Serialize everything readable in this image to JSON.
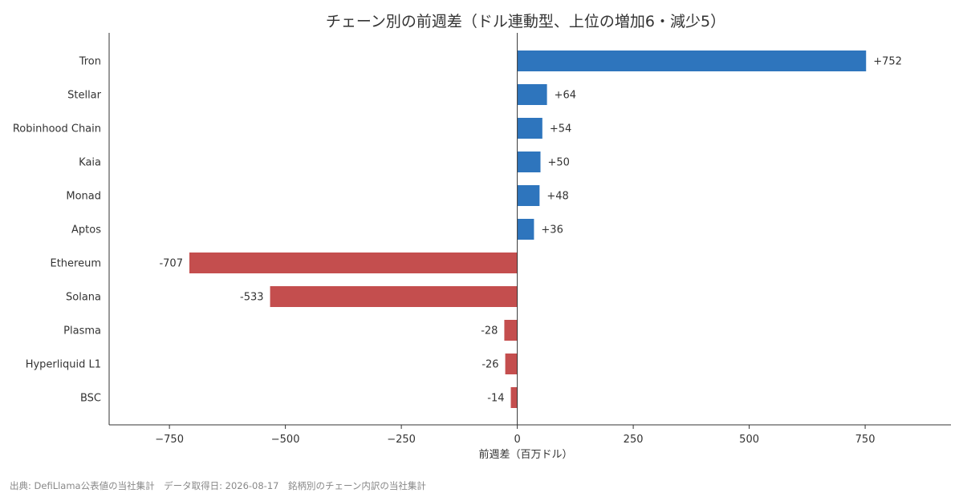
{
  "chart_data": {
    "type": "bar",
    "orientation": "horizontal",
    "title": "チェーン別の前週差（ドル連動型、上位の増加6・減少5）",
    "xlabel": "前週差（百万ドル）",
    "ylabel": "",
    "xlim": [
      -880,
      935
    ],
    "xticks": [
      -750,
      -500,
      -250,
      0,
      250,
      500,
      750
    ],
    "xtick_labels": [
      "−750",
      "−500",
      "−250",
      "0",
      "250",
      "500",
      "750"
    ],
    "categories": [
      "Tron",
      "Stellar",
      "Robinhood Chain",
      "Kaia",
      "Monad",
      "Aptos",
      "Ethereum",
      "Solana",
      "Plasma",
      "Hyperliquid L1",
      "BSC"
    ],
    "values": [
      752,
      64,
      54,
      50,
      48,
      36,
      -707,
      -533,
      -28,
      -26,
      -14
    ],
    "data_labels": [
      "+752",
      "+64",
      "+54",
      "+50",
      "+48",
      "+36",
      "-707",
      "-533",
      "-28",
      "-26",
      "-14"
    ],
    "colors": {
      "positive": "#2e75bd",
      "negative": "#c44e4e"
    },
    "grid": false,
    "legend": "none"
  },
  "footer": {
    "source_text": "出典: DefiLlama公表値の当社集計　データ取得日: 2026-08-17　銘柄別のチェーン内訳の当社集計"
  }
}
